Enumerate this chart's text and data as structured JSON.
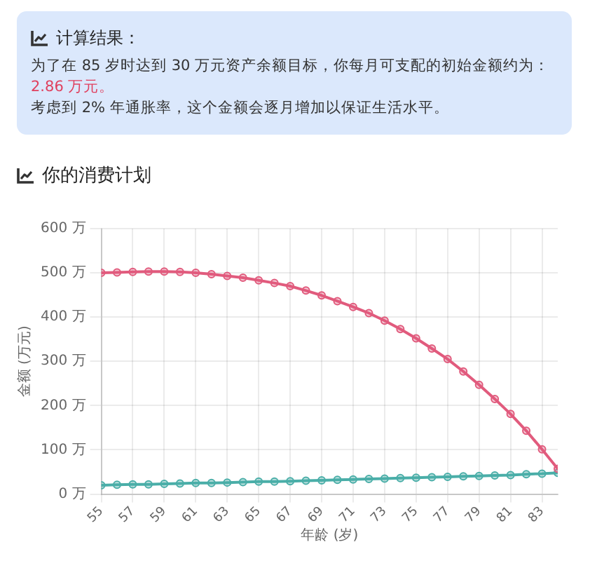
{
  "chart_data": [
    {
      "type": "other",
      "title": "计算结果：",
      "annotations": [
        "为了在 85 岁时达到 30 万元资产余额目标，你每月可支配的初始金额约为：",
        "2.86 万元。",
        "考虑到 2% 年通胀率，这个金额会逐月增加以保证生活水平。"
      ]
    },
    {
      "type": "line",
      "title": "你的消费计划",
      "xlabel": "年龄 (岁)",
      "ylabel": "金额 (万元)",
      "x": [
        55,
        56,
        57,
        58,
        59,
        60,
        61,
        62,
        63,
        64,
        65,
        66,
        67,
        68,
        69,
        70,
        71,
        72,
        73,
        74,
        75,
        76,
        77,
        78,
        79,
        80,
        81,
        82,
        83,
        84
      ],
      "xlim": [
        55,
        84
      ],
      "xticks": [
        55,
        57,
        59,
        61,
        63,
        65,
        67,
        69,
        71,
        73,
        75,
        77,
        79,
        81,
        83
      ],
      "ylim": [
        0,
        600
      ],
      "yticks": [
        {
          "value": 0,
          "label": "0 万"
        },
        {
          "value": 100,
          "label": "100 万"
        },
        {
          "value": 200,
          "label": "200 万"
        },
        {
          "value": 300,
          "label": "300 万"
        },
        {
          "value": 400,
          "label": "400 万"
        },
        {
          "value": 500,
          "label": "500 万"
        },
        {
          "value": 600,
          "label": "600 万"
        }
      ],
      "series": [
        {
          "color": "#e15b7d",
          "values": [
            500,
            501,
            502,
            503,
            503,
            502,
            500,
            497,
            493,
            489,
            483,
            477,
            470,
            460,
            449,
            436,
            423,
            409,
            392,
            373,
            352,
            329,
            305,
            277,
            247,
            215,
            181,
            143,
            101,
            57
          ]
        },
        {
          "color": "#4aaea8",
          "values": [
            20,
            21,
            22,
            22,
            23,
            24,
            25,
            25,
            26,
            27,
            28,
            28,
            29,
            30,
            31,
            32,
            33,
            34,
            35,
            36,
            37,
            38,
            39,
            40,
            41,
            42,
            43,
            45,
            46,
            48
          ]
        }
      ],
      "grid": true,
      "legend": false,
      "marker": "circle",
      "line_style": "solid"
    }
  ]
}
